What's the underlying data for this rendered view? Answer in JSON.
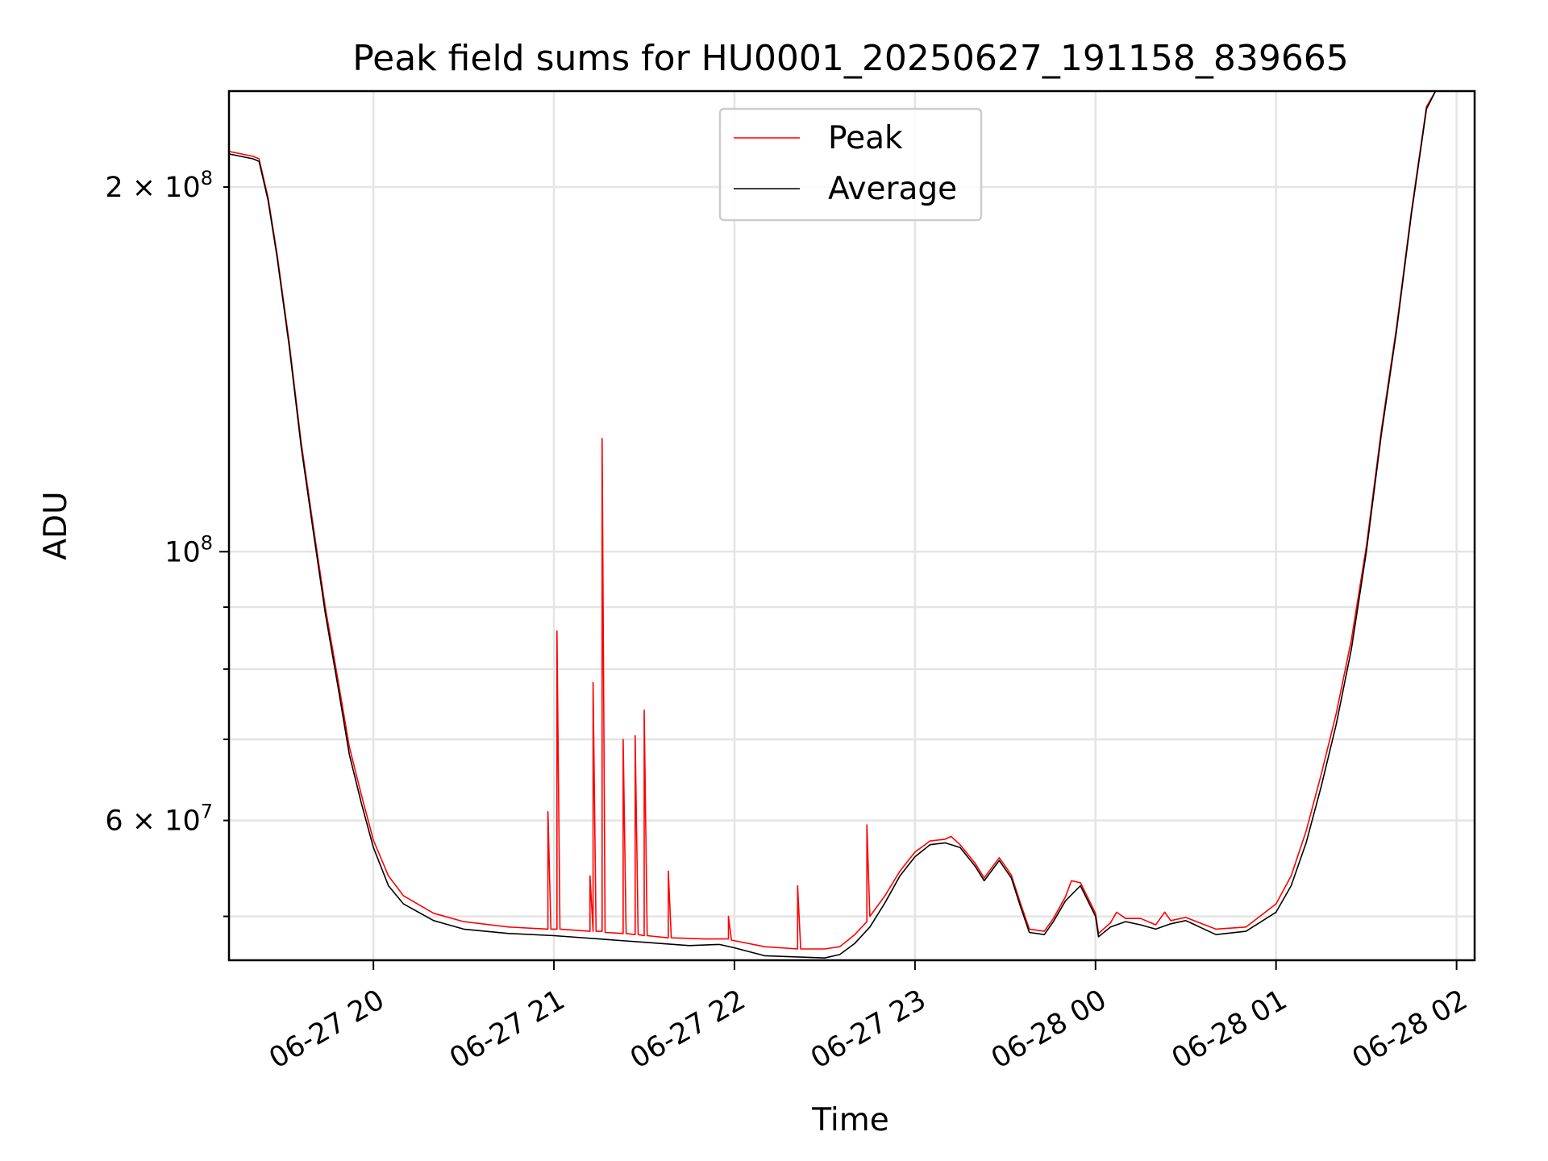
{
  "chart_data": {
    "type": "line",
    "title": "Peak field sums for HU0001_20250627_191158_839665",
    "xlabel": "Time",
    "ylabel": "ADU",
    "yscale": "log",
    "grid": true,
    "legend_position": "top-center",
    "xlim": [
      "2025-06-27 19:12",
      "2025-06-28 02:06"
    ],
    "ylim": [
      46000000,
      240000000
    ],
    "x_ticks": [
      {
        "value": "2025-06-27 20:00",
        "label": "06-27 20"
      },
      {
        "value": "2025-06-27 21:00",
        "label": "06-27 21"
      },
      {
        "value": "2025-06-27 22:00",
        "label": "06-27 22"
      },
      {
        "value": "2025-06-27 23:00",
        "label": "06-27 23"
      },
      {
        "value": "2025-06-28 00:00",
        "label": "06-28 00"
      },
      {
        "value": "2025-06-28 01:00",
        "label": "06-28 01"
      },
      {
        "value": "2025-06-28 02:00",
        "label": "06-28 02"
      }
    ],
    "y_major_ticks": [
      {
        "value": 100000000,
        "label_base": "10",
        "label_exp": "8"
      }
    ],
    "y_minor_ticks": [
      {
        "value": 50000000
      },
      {
        "value": 60000000,
        "label_base": "6 × 10",
        "label_exp": "7"
      },
      {
        "value": 70000000
      },
      {
        "value": 80000000
      },
      {
        "value": 90000000
      },
      {
        "value": 200000000,
        "label_base": "2 × 10",
        "label_exp": "8"
      }
    ],
    "series": [
      {
        "name": "Average",
        "color": "#000000",
        "points": [
          [
            "2025-06-27 19:12",
            213000000
          ],
          [
            "2025-06-27 19:20",
            211000000
          ],
          [
            "2025-06-27 19:22",
            210000000
          ],
          [
            "2025-06-27 19:25",
            195000000
          ],
          [
            "2025-06-27 19:28",
            175000000
          ],
          [
            "2025-06-27 19:32",
            148000000
          ],
          [
            "2025-06-27 19:36",
            122000000
          ],
          [
            "2025-06-27 19:40",
            104000000
          ],
          [
            "2025-06-27 19:44",
            89000000
          ],
          [
            "2025-06-27 19:48",
            78000000
          ],
          [
            "2025-06-27 19:52",
            68000000
          ],
          [
            "2025-06-27 19:56",
            62000000
          ],
          [
            "2025-06-27 20:00",
            57000000
          ],
          [
            "2025-06-27 20:05",
            53000000
          ],
          [
            "2025-06-27 20:10",
            51200000
          ],
          [
            "2025-06-27 20:20",
            49600000
          ],
          [
            "2025-06-27 20:30",
            48800000
          ],
          [
            "2025-06-27 20:45",
            48400000
          ],
          [
            "2025-06-27 21:00",
            48200000
          ],
          [
            "2025-06-27 21:15",
            47900000
          ],
          [
            "2025-06-27 21:30",
            47600000
          ],
          [
            "2025-06-27 21:45",
            47300000
          ],
          [
            "2025-06-27 21:55",
            47400000
          ],
          [
            "2025-06-27 22:00",
            47100000
          ],
          [
            "2025-06-27 22:10",
            46400000
          ],
          [
            "2025-06-27 22:30",
            46200000
          ],
          [
            "2025-06-27 22:35",
            46500000
          ],
          [
            "2025-06-27 22:40",
            47500000
          ],
          [
            "2025-06-27 22:45",
            49000000
          ],
          [
            "2025-06-27 22:50",
            51300000
          ],
          [
            "2025-06-27 22:55",
            54000000
          ],
          [
            "2025-06-27 23:00",
            56000000
          ],
          [
            "2025-06-27 23:05",
            57300000
          ],
          [
            "2025-06-27 23:10",
            57500000
          ],
          [
            "2025-06-27 23:15",
            57000000
          ],
          [
            "2025-06-27 23:20",
            55000000
          ],
          [
            "2025-06-27 23:23",
            53500000
          ],
          [
            "2025-06-27 23:28",
            55600000
          ],
          [
            "2025-06-27 23:32",
            53800000
          ],
          [
            "2025-06-27 23:35",
            51000000
          ],
          [
            "2025-06-27 23:38",
            48500000
          ],
          [
            "2025-06-27 23:43",
            48300000
          ],
          [
            "2025-06-27 23:46",
            49500000
          ],
          [
            "2025-06-27 23:50",
            51500000
          ],
          [
            "2025-06-27 23:55",
            53000000
          ],
          [
            "2025-06-28 00:00",
            50000000
          ],
          [
            "2025-06-28 00:01",
            48100000
          ],
          [
            "2025-06-28 00:05",
            49000000
          ],
          [
            "2025-06-28 00:10",
            49500000
          ],
          [
            "2025-06-28 00:15",
            49200000
          ],
          [
            "2025-06-28 00:20",
            48800000
          ],
          [
            "2025-06-28 00:25",
            49300000
          ],
          [
            "2025-06-28 00:30",
            49600000
          ],
          [
            "2025-06-28 00:40",
            48300000
          ],
          [
            "2025-06-28 00:50",
            48600000
          ],
          [
            "2025-06-28 01:00",
            50400000
          ],
          [
            "2025-06-28 01:05",
            53000000
          ],
          [
            "2025-06-28 01:10",
            57500000
          ],
          [
            "2025-06-28 01:15",
            64000000
          ],
          [
            "2025-06-28 01:20",
            72000000
          ],
          [
            "2025-06-28 01:25",
            83000000
          ],
          [
            "2025-06-28 01:30",
            100000000
          ],
          [
            "2025-06-28 01:35",
            125000000
          ],
          [
            "2025-06-28 01:40",
            152000000
          ],
          [
            "2025-06-28 01:45",
            190000000
          ],
          [
            "2025-06-28 01:50",
            232000000
          ],
          [
            "2025-06-28 01:53",
            240000000
          ]
        ]
      },
      {
        "name": "Peak",
        "color": "#ff0000",
        "points": [
          [
            "2025-06-27 19:12",
            214000000
          ],
          [
            "2025-06-27 19:20",
            212000000
          ],
          [
            "2025-06-27 19:22",
            211000000
          ],
          [
            "2025-06-27 19:25",
            196000000
          ],
          [
            "2025-06-27 19:28",
            176000000
          ],
          [
            "2025-06-27 19:32",
            149000000
          ],
          [
            "2025-06-27 19:36",
            123000000
          ],
          [
            "2025-06-27 19:40",
            105000000
          ],
          [
            "2025-06-27 19:44",
            90000000
          ],
          [
            "2025-06-27 19:48",
            79000000
          ],
          [
            "2025-06-27 19:52",
            69000000
          ],
          [
            "2025-06-27 19:56",
            63000000
          ],
          [
            "2025-06-27 20:00",
            57800000
          ],
          [
            "2025-06-27 20:05",
            54000000
          ],
          [
            "2025-06-27 20:10",
            52000000
          ],
          [
            "2025-06-27 20:20",
            50300000
          ],
          [
            "2025-06-27 20:30",
            49500000
          ],
          [
            "2025-06-27 20:45",
            49000000
          ],
          [
            "2025-06-27 20:58",
            48800000
          ],
          [
            "2025-06-27 20:58",
            61000000
          ],
          [
            "2025-06-27 20:59",
            48800000
          ],
          [
            "2025-06-27 21:01",
            48800000
          ],
          [
            "2025-06-27 21:01",
            86000000
          ],
          [
            "2025-06-27 21:02",
            48800000
          ],
          [
            "2025-06-27 21:12",
            48600000
          ],
          [
            "2025-06-27 21:12",
            54000000
          ],
          [
            "2025-06-27 21:13",
            48600000
          ],
          [
            "2025-06-27 21:13",
            78000000
          ],
          [
            "2025-06-27 21:14",
            48600000
          ],
          [
            "2025-06-27 21:16",
            48600000
          ],
          [
            "2025-06-27 21:16",
            124000000
          ],
          [
            "2025-06-27 21:17",
            48500000
          ],
          [
            "2025-06-27 21:23",
            48400000
          ],
          [
            "2025-06-27 21:23",
            70000000
          ],
          [
            "2025-06-27 21:24",
            48400000
          ],
          [
            "2025-06-27 21:27",
            48300000
          ],
          [
            "2025-06-27 21:27",
            70500000
          ],
          [
            "2025-06-27 21:28",
            48300000
          ],
          [
            "2025-06-27 21:30",
            48200000
          ],
          [
            "2025-06-27 21:30",
            74000000
          ],
          [
            "2025-06-27 21:31",
            48200000
          ],
          [
            "2025-06-27 21:38",
            48000000
          ],
          [
            "2025-06-27 21:38",
            54500000
          ],
          [
            "2025-06-27 21:39",
            48000000
          ],
          [
            "2025-06-27 21:50",
            47900000
          ],
          [
            "2025-06-27 21:58",
            47900000
          ],
          [
            "2025-06-27 21:58",
            50000000
          ],
          [
            "2025-06-27 21:59",
            47800000
          ],
          [
            "2025-06-27 22:10",
            47200000
          ],
          [
            "2025-06-27 22:21",
            47000000
          ],
          [
            "2025-06-27 22:21",
            53000000
          ],
          [
            "2025-06-27 22:22",
            47000000
          ],
          [
            "2025-06-27 22:30",
            47000000
          ],
          [
            "2025-06-27 22:35",
            47200000
          ],
          [
            "2025-06-27 22:40",
            48300000
          ],
          [
            "2025-06-27 22:44",
            49500000
          ],
          [
            "2025-06-27 22:44",
            59500000
          ],
          [
            "2025-06-27 22:45",
            50000000
          ],
          [
            "2025-06-27 22:50",
            52000000
          ],
          [
            "2025-06-27 22:55",
            54500000
          ],
          [
            "2025-06-27 23:00",
            56500000
          ],
          [
            "2025-06-27 23:05",
            57700000
          ],
          [
            "2025-06-27 23:10",
            57900000
          ],
          [
            "2025-06-27 23:12",
            58200000
          ],
          [
            "2025-06-27 23:15",
            57300000
          ],
          [
            "2025-06-27 23:20",
            55300000
          ],
          [
            "2025-06-27 23:23",
            53800000
          ],
          [
            "2025-06-27 23:28",
            55900000
          ],
          [
            "2025-06-27 23:32",
            54100000
          ],
          [
            "2025-06-27 23:35",
            51300000
          ],
          [
            "2025-06-27 23:38",
            48800000
          ],
          [
            "2025-06-27 23:43",
            48600000
          ],
          [
            "2025-06-27 23:46",
            49800000
          ],
          [
            "2025-06-27 23:50",
            51900000
          ],
          [
            "2025-06-27 23:52",
            53500000
          ],
          [
            "2025-06-27 23:55",
            53300000
          ],
          [
            "2025-06-28 00:00",
            50300000
          ],
          [
            "2025-06-28 00:01",
            48400000
          ],
          [
            "2025-06-28 00:05",
            49400000
          ],
          [
            "2025-06-28 00:07",
            50400000
          ],
          [
            "2025-06-28 00:10",
            49800000
          ],
          [
            "2025-06-28 00:15",
            49800000
          ],
          [
            "2025-06-28 00:20",
            49200000
          ],
          [
            "2025-06-28 00:23",
            50400000
          ],
          [
            "2025-06-28 00:25",
            49600000
          ],
          [
            "2025-06-28 00:30",
            49900000
          ],
          [
            "2025-06-28 00:40",
            48800000
          ],
          [
            "2025-06-28 00:50",
            49000000
          ],
          [
            "2025-06-28 01:00",
            51200000
          ],
          [
            "2025-06-28 01:05",
            54000000
          ],
          [
            "2025-06-28 01:10",
            58800000
          ],
          [
            "2025-06-28 01:15",
            65500000
          ],
          [
            "2025-06-28 01:20",
            73500000
          ],
          [
            "2025-06-28 01:25",
            84500000
          ],
          [
            "2025-06-28 01:30",
            101000000
          ],
          [
            "2025-06-28 01:35",
            126000000
          ],
          [
            "2025-06-28 01:40",
            153000000
          ],
          [
            "2025-06-28 01:45",
            191000000
          ],
          [
            "2025-06-28 01:50",
            233000000
          ],
          [
            "2025-06-28 01:53",
            240000000
          ]
        ]
      }
    ]
  }
}
